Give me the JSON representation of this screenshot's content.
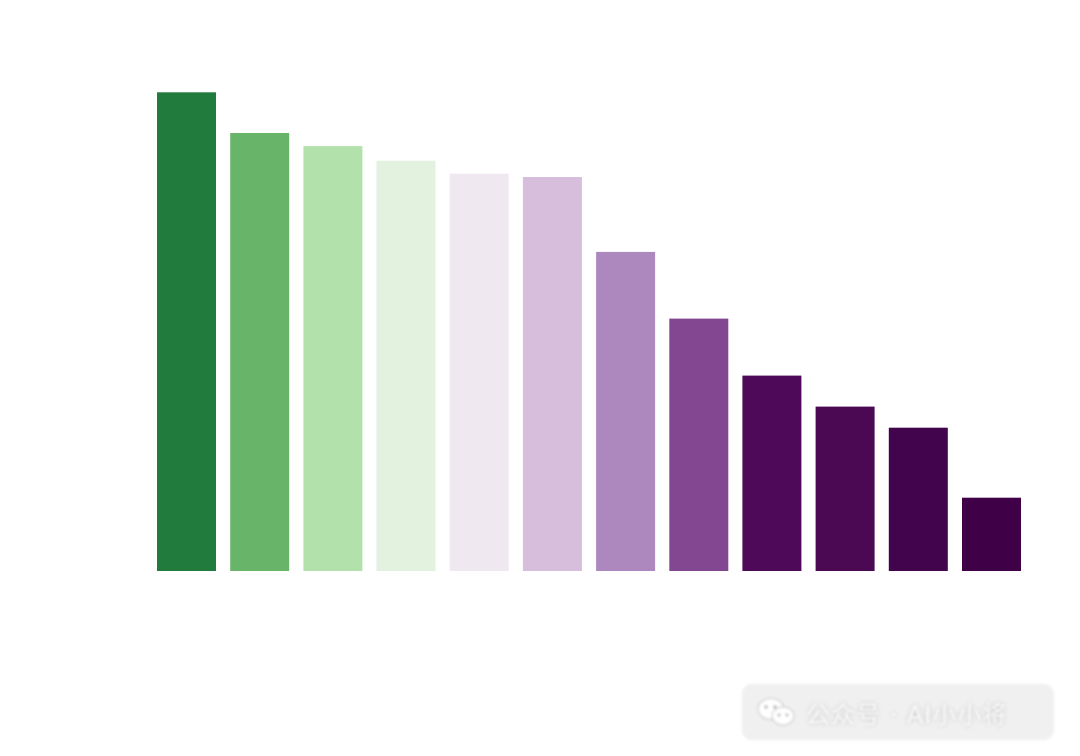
{
  "chart_data": {
    "type": "bar",
    "values": [
      29.4,
      26.9,
      26.1,
      25.2,
      24.4,
      24.2,
      19.6,
      15.5,
      12.0,
      10.1,
      8.8,
      4.5
    ],
    "colors": [
      "#217b3c",
      "#68b56a",
      "#b3e1ab",
      "#e2f2df",
      "#f0e8f1",
      "#d8bedd",
      "#ac88bf",
      "#834792",
      "#4e0a58",
      "#4b0953",
      "#42044d",
      "#3f0047"
    ],
    "ylim": [
      0,
      32
    ],
    "grid": false,
    "legend": "none"
  },
  "watermark": {
    "icon": "wechat-icon",
    "text": "公众号 · AI小小将"
  }
}
